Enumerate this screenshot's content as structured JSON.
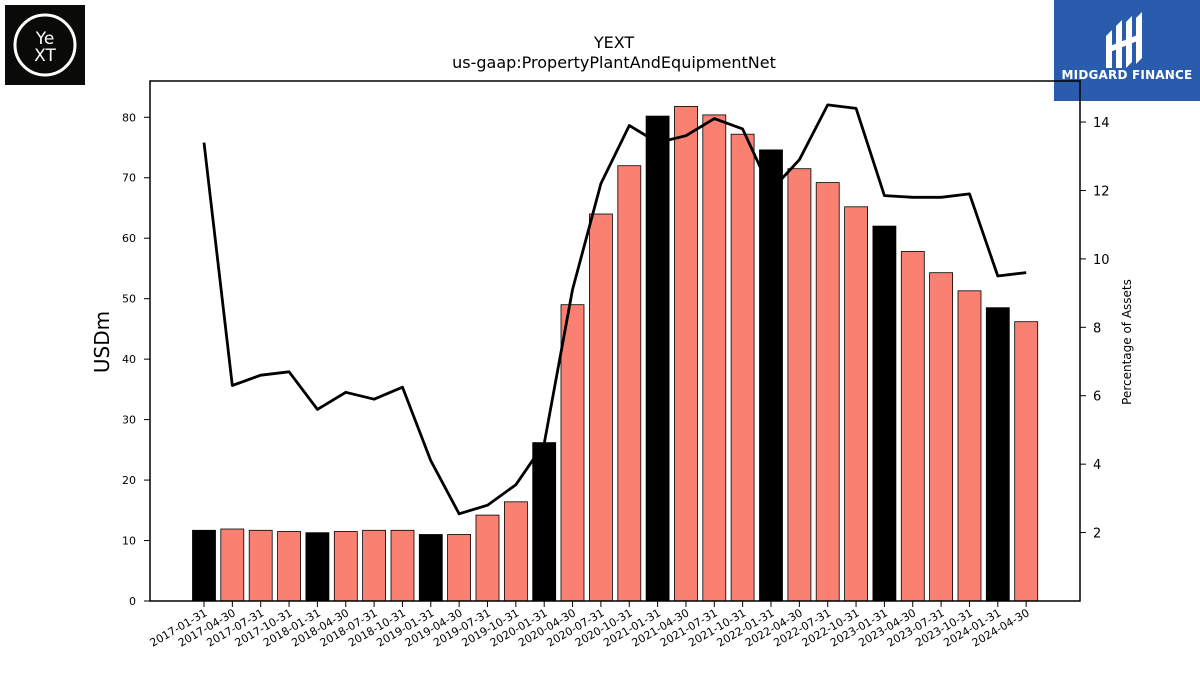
{
  "brand_left": {
    "logo_text_top": "Ye",
    "logo_text_bottom": "XT"
  },
  "brand_right": {
    "name": "MIDGARD FINANCE",
    "bg_color": "#2a5cad"
  },
  "colors": {
    "bar_default": "#fa8072",
    "bar_highlight": "#000000",
    "line": "#000000"
  },
  "chart_data": {
    "type": "bar",
    "title": "YEXT",
    "subtitle": "us-gaap:PropertyPlantAndEquipmentNet",
    "ylabel": "USDm",
    "y2label": "Percentage of Assets",
    "ylim": [
      0,
      86
    ],
    "y2lim": [
      0,
      15.2
    ],
    "yticks": [
      0,
      10,
      20,
      30,
      40,
      50,
      60,
      70,
      80
    ],
    "y2ticks": [
      2,
      4,
      6,
      8,
      10,
      12,
      14
    ],
    "categories": [
      "2017-01-31",
      "2017-04-30",
      "2017-07-31",
      "2017-10-31",
      "2018-01-31",
      "2018-04-30",
      "2018-07-31",
      "2018-10-31",
      "2019-01-31",
      "2019-04-30",
      "2019-07-31",
      "2019-10-31",
      "2020-01-31",
      "2020-04-30",
      "2020-07-31",
      "2020-10-31",
      "2021-01-31",
      "2021-04-30",
      "2021-07-31",
      "2021-10-31",
      "2022-01-31",
      "2022-04-30",
      "2022-07-31",
      "2022-10-31",
      "2023-01-31",
      "2023-04-30",
      "2023-07-31",
      "2023-10-31",
      "2024-01-31",
      "2024-04-30"
    ],
    "series": [
      {
        "type": "bar",
        "axis": "left",
        "values": [
          11.7,
          11.9,
          11.7,
          11.5,
          11.3,
          11.5,
          11.7,
          11.7,
          11.0,
          11.0,
          14.2,
          16.4,
          26.2,
          49.0,
          64.0,
          72.0,
          80.2,
          81.8,
          80.4,
          77.2,
          74.6,
          71.5,
          69.2,
          65.2,
          62.0,
          57.8,
          54.3,
          51.3,
          48.5,
          46.2
        ],
        "highlight": [
          true,
          false,
          false,
          false,
          true,
          false,
          false,
          false,
          true,
          false,
          false,
          false,
          true,
          false,
          false,
          false,
          true,
          false,
          false,
          false,
          true,
          false,
          false,
          false,
          true,
          false,
          false,
          false,
          true,
          false
        ]
      },
      {
        "type": "line",
        "axis": "right",
        "values": [
          13.4,
          6.3,
          6.6,
          6.7,
          5.6,
          6.1,
          5.9,
          6.25,
          4.1,
          2.55,
          2.8,
          3.4,
          4.6,
          9.1,
          12.2,
          13.9,
          13.4,
          13.6,
          14.1,
          13.8,
          12.0,
          12.9,
          14.5,
          14.4,
          11.85,
          11.8,
          11.8,
          11.9,
          9.5,
          9.6
        ]
      }
    ]
  }
}
